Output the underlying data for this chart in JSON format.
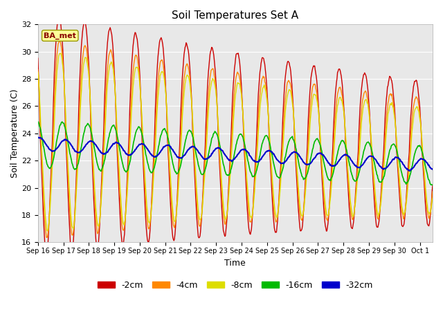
{
  "title": "Soil Temperatures Set A",
  "xlabel": "Time",
  "ylabel": "Soil Temperature (C)",
  "ylim": [
    16,
    32
  ],
  "background_color": "#e8e8e8",
  "figure_color": "#ffffff",
  "annotation_text": "BA_met",
  "annotation_bg": "#ffff99",
  "annotation_border": "#999900",
  "annotation_text_color": "#880000",
  "depths": [
    "-2cm",
    "-4cm",
    "-8cm",
    "-16cm",
    "-32cm"
  ],
  "colors": [
    "#cc0000",
    "#ff8800",
    "#dddd00",
    "#00bb00",
    "#0000cc"
  ],
  "x_tick_labels": [
    "Sep 16",
    "Sep 17",
    "Sep 18",
    "Sep 19",
    "Sep 20",
    "Sep 21",
    "Sep 22",
    "Sep 23",
    "Sep 24",
    "Sep 25",
    "Sep 26",
    "Sep 27",
    "Sep 28",
    "Sep 29",
    "Sep 30",
    "Oct 1"
  ],
  "num_days": 15.5,
  "samples_per_day": 48
}
